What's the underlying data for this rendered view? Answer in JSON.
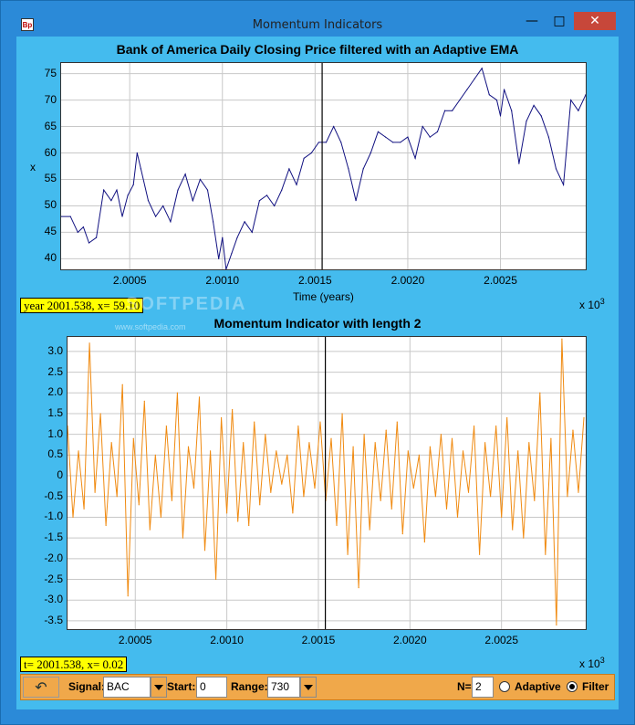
{
  "window": {
    "title": "Momentum Indicators",
    "icon": "app-icon",
    "min_icon": "minimize-icon",
    "max_icon": "maximize-icon",
    "close_icon": "close-icon"
  },
  "watermark": {
    "text": "SOFTPEDIA",
    "url": "www.softpedia.com"
  },
  "readouts": {
    "top": "year 2001.538, x= 59.10",
    "bottom": "t= 2001.538, x= 0.02"
  },
  "toolbar": {
    "signal_label": "Signal:",
    "signal_value": "BAC",
    "start_label": "Start:",
    "start_value": "0",
    "range_label": "Range:",
    "range_value": "730",
    "n_label": "N=",
    "n_value": "2",
    "adaptive_label": "Adaptive",
    "filter_label": "Filter",
    "adaptive_selected": false,
    "filter_selected": true
  },
  "chart_data": [
    {
      "type": "line",
      "title": "Bank of America Daily Closing Price filtered with an Adaptive EMA",
      "xlabel": "Time (years)",
      "ylabel": "x",
      "x_multiplier": "x 10",
      "x_multiplier_exp": "3",
      "xlim": [
        2.00013,
        2.00296
      ],
      "ylim": [
        38,
        77
      ],
      "xticks": [
        "2.0005",
        "2.0010",
        "2.0015",
        "2.0020",
        "2.0025"
      ],
      "yticks": [
        "40",
        "45",
        "50",
        "55",
        "60",
        "65",
        "70",
        "75"
      ],
      "xtick_values": [
        2.0005,
        2.001,
        2.0015,
        2.002,
        2.0025
      ],
      "ytick_values": [
        40,
        45,
        50,
        55,
        60,
        65,
        70,
        75
      ],
      "cursor_x": 2.001538,
      "grid": true,
      "color": "#101080",
      "series": [
        {
          "x": [
            2.00013,
            2.00018,
            2.00022,
            2.00025,
            2.00028,
            2.00032,
            2.00036,
            2.0004,
            2.00043,
            2.00046,
            2.00049,
            2.00052,
            2.00054,
            2.00056,
            2.0006,
            2.00064,
            2.00068,
            2.00072,
            2.00076,
            2.0008,
            2.00084,
            2.00088,
            2.00092,
            2.00095,
            2.00098,
            2.001,
            2.00102,
            2.00105,
            2.00108,
            2.00112,
            2.00116,
            2.0012,
            2.00124,
            2.00128,
            2.00132,
            2.00136,
            2.0014,
            2.00144,
            2.00148,
            2.00152,
            2.00156,
            2.0016,
            2.00164,
            2.00168,
            2.00172,
            2.00176,
            2.0018,
            2.00184,
            2.00188,
            2.00192,
            2.00196,
            2.002,
            2.00204,
            2.00208,
            2.00212,
            2.00216,
            2.0022,
            2.00224,
            2.00228,
            2.00232,
            2.00236,
            2.0024,
            2.00244,
            2.00248,
            2.0025,
            2.00252,
            2.00256,
            2.0026,
            2.00264,
            2.00268,
            2.00272,
            2.00276,
            2.0028,
            2.00284,
            2.00288,
            2.00292,
            2.00296
          ],
          "y": [
            48,
            48,
            45,
            46,
            43,
            44,
            53,
            51,
            53,
            48,
            52,
            54,
            60,
            57,
            51,
            48,
            50,
            47,
            53,
            56,
            51,
            55,
            53,
            47,
            40,
            44,
            38,
            41,
            44,
            47,
            45,
            51,
            52,
            50,
            53,
            57,
            54,
            59,
            60,
            62,
            62,
            65,
            62,
            57,
            51,
            57,
            60,
            64,
            63,
            62,
            62,
            63,
            59,
            65,
            63,
            64,
            68,
            68,
            70,
            72,
            74,
            76,
            71,
            70,
            67,
            72,
            68,
            58,
            66,
            69,
            67,
            63,
            57,
            54,
            70,
            68,
            71
          ]
        }
      ]
    },
    {
      "type": "line",
      "title": "Momentum Indicator with length 2",
      "xlabel": "",
      "ylabel": "",
      "x_multiplier": "x 10",
      "x_multiplier_exp": "3",
      "xlim": [
        2.00013,
        2.00296
      ],
      "ylim": [
        -3.7,
        3.35
      ],
      "xticks": [
        "2.0005",
        "2.0010",
        "2.0015",
        "2.0020",
        "2.0025"
      ],
      "yticks": [
        "3.0",
        "2.5",
        "2.0",
        "1.5",
        "1.0",
        "0.5",
        "0",
        "-0.5",
        "-1.0",
        "-1.5",
        "-2.0",
        "-2.5",
        "-3.0",
        "-3.5"
      ],
      "xtick_values": [
        2.0005,
        2.001,
        2.0015,
        2.002,
        2.0025
      ],
      "ytick_values": [
        3.0,
        2.5,
        2.0,
        1.5,
        1.0,
        0.5,
        0,
        -0.5,
        -1.0,
        -1.5,
        -2.0,
        -2.5,
        -3.0,
        -3.5
      ],
      "cursor_x": 2.001538,
      "grid": true,
      "color": "#f08a10",
      "series": [
        {
          "x": [
            2.00013,
            2.00016,
            2.00019,
            2.00022,
            2.00025,
            2.00028,
            2.00031,
            2.00034,
            2.00037,
            2.0004,
            2.00043,
            2.00046,
            2.00049,
            2.00052,
            2.00055,
            2.00058,
            2.00061,
            2.00064,
            2.00067,
            2.0007,
            2.00073,
            2.00076,
            2.00079,
            2.00082,
            2.00085,
            2.00088,
            2.00091,
            2.00094,
            2.00097,
            2.001,
            2.00103,
            2.00106,
            2.00109,
            2.00112,
            2.00115,
            2.00118,
            2.00121,
            2.00124,
            2.00127,
            2.0013,
            2.00133,
            2.00136,
            2.00139,
            2.00142,
            2.00145,
            2.00148,
            2.00151,
            2.00154,
            2.00157,
            2.0016,
            2.00163,
            2.00166,
            2.00169,
            2.00172,
            2.00175,
            2.00178,
            2.00181,
            2.00184,
            2.00187,
            2.0019,
            2.00193,
            2.00196,
            2.00199,
            2.00202,
            2.00205,
            2.00208,
            2.00211,
            2.00214,
            2.00217,
            2.0022,
            2.00223,
            2.00226,
            2.00229,
            2.00232,
            2.00235,
            2.00238,
            2.00241,
            2.00244,
            2.00247,
            2.0025,
            2.00253,
            2.00256,
            2.00259,
            2.00262,
            2.00265,
            2.00268,
            2.00271,
            2.00274,
            2.00277,
            2.0028,
            2.00283,
            2.00286,
            2.00289,
            2.00292,
            2.00295
          ],
          "y": [
            1.2,
            -1.0,
            0.6,
            -0.8,
            3.2,
            -0.4,
            1.5,
            -1.2,
            0.8,
            -0.5,
            2.2,
            -2.9,
            0.9,
            -0.7,
            1.8,
            -1.3,
            0.5,
            -1.0,
            1.2,
            -0.6,
            2.0,
            -1.5,
            0.7,
            -0.3,
            1.9,
            -1.8,
            0.6,
            -2.5,
            1.4,
            -0.9,
            1.6,
            -1.1,
            0.8,
            -1.2,
            1.3,
            -0.7,
            1.0,
            -0.4,
            0.6,
            -0.2,
            0.5,
            -0.9,
            1.2,
            -0.5,
            0.8,
            -0.3,
            1.3,
            -0.6,
            0.9,
            -1.2,
            1.5,
            -1.9,
            0.7,
            -2.7,
            1.0,
            -1.3,
            0.8,
            -0.6,
            1.1,
            -0.8,
            1.3,
            -1.4,
            0.6,
            -0.3,
            0.5,
            -1.6,
            0.7,
            -0.5,
            1.0,
            -0.8,
            0.9,
            -1.0,
            0.6,
            -0.4,
            1.2,
            -1.9,
            0.8,
            -0.5,
            1.2,
            -1.0,
            1.4,
            -1.3,
            0.6,
            -1.5,
            0.8,
            -0.6,
            2.0,
            -1.9,
            0.9,
            -3.6,
            3.3,
            -0.5,
            1.1,
            -0.4,
            1.4
          ]
        }
      ]
    }
  ]
}
